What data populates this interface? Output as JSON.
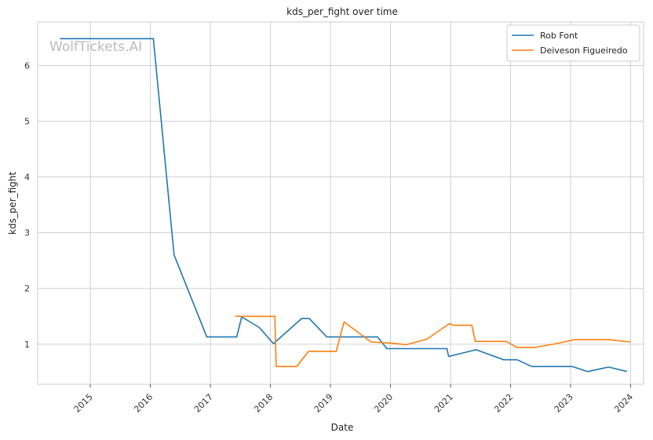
{
  "chart_data": {
    "type": "line",
    "title": "kds_per_fight over time",
    "xlabel": "Date",
    "ylabel": "kds_per_fight",
    "watermark": "WolfTickets.AI",
    "xlim": [
      "2014-02-15",
      "2024-03-20"
    ],
    "ylim": [
      0.28,
      6.78
    ],
    "x_ticks": [
      "2015-01-01",
      "2016-01-01",
      "2017-01-01",
      "2018-01-01",
      "2019-01-01",
      "2020-01-01",
      "2021-01-01",
      "2022-01-01",
      "2023-01-01",
      "2024-01-01"
    ],
    "x_tick_labels": [
      "2015",
      "2016",
      "2017",
      "2018",
      "2019",
      "2020",
      "2021",
      "2022",
      "2023",
      "2024"
    ],
    "y_ticks": [
      1,
      2,
      3,
      4,
      5,
      6
    ],
    "y_tick_labels": [
      "1",
      "2",
      "3",
      "4",
      "5",
      "6"
    ],
    "grid": true,
    "legend_position": "top-right",
    "series": [
      {
        "name": "Rob Font",
        "color": "#1f77b4",
        "points": [
          [
            "2014-07-01",
            6.48
          ],
          [
            "2016-01-20",
            6.48
          ],
          [
            "2016-05-25",
            2.6
          ],
          [
            "2016-12-10",
            1.13
          ],
          [
            "2017-06-10",
            1.13
          ],
          [
            "2017-07-10",
            1.49
          ],
          [
            "2017-10-25",
            1.3
          ],
          [
            "2018-01-20",
            1.01
          ],
          [
            "2018-07-10",
            1.46
          ],
          [
            "2018-08-25",
            1.46
          ],
          [
            "2018-12-10",
            1.13
          ],
          [
            "2019-10-15",
            1.13
          ],
          [
            "2019-12-10",
            0.92
          ],
          [
            "2020-12-10",
            0.92
          ],
          [
            "2020-12-20",
            0.78
          ],
          [
            "2021-06-05",
            0.9
          ],
          [
            "2021-11-20",
            0.72
          ],
          [
            "2022-02-10",
            0.72
          ],
          [
            "2022-05-10",
            0.6
          ],
          [
            "2023-01-10",
            0.6
          ],
          [
            "2023-04-15",
            0.51
          ],
          [
            "2023-08-20",
            0.59
          ],
          [
            "2023-12-10",
            0.51
          ]
        ]
      },
      {
        "name": "Deiveson Figueiredo",
        "color": "#ff7f0e",
        "points": [
          [
            "2017-06-01",
            1.5
          ],
          [
            "2018-01-28",
            1.5
          ],
          [
            "2018-02-05",
            0.6
          ],
          [
            "2018-06-10",
            0.6
          ],
          [
            "2018-08-20",
            0.87
          ],
          [
            "2019-02-05",
            0.87
          ],
          [
            "2019-03-25",
            1.4
          ],
          [
            "2019-09-05",
            1.04
          ],
          [
            "2020-01-05",
            1.02
          ],
          [
            "2020-04-05",
            0.99
          ],
          [
            "2020-08-10",
            1.09
          ],
          [
            "2020-12-25",
            1.37
          ],
          [
            "2021-01-15",
            1.34
          ],
          [
            "2021-05-10",
            1.34
          ],
          [
            "2021-06-01",
            1.05
          ],
          [
            "2021-12-05",
            1.05
          ],
          [
            "2022-02-10",
            0.94
          ],
          [
            "2022-05-25",
            0.94
          ],
          [
            "2022-10-05",
            1.01
          ],
          [
            "2023-01-25",
            1.08
          ],
          [
            "2023-08-20",
            1.08
          ],
          [
            "2024-01-01",
            1.04
          ]
        ]
      }
    ]
  }
}
